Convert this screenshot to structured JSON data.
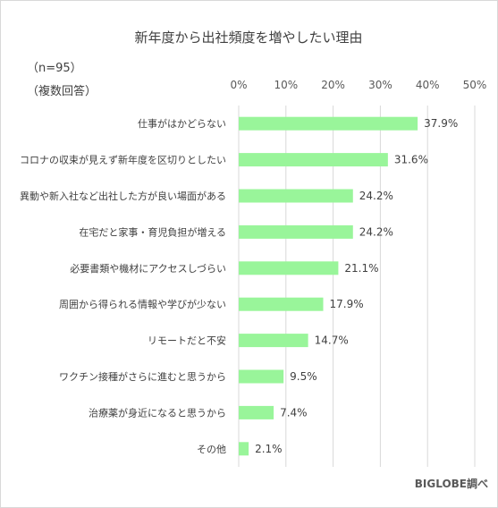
{
  "chart_data": {
    "type": "bar",
    "orientation": "horizontal",
    "title": "新年度から出社頻度を増やしたい理由",
    "notes": [
      "（n=95）",
      "（複数回答）"
    ],
    "source": "BIGLOBE調べ",
    "xlim": [
      0,
      50
    ],
    "x_ticks": [
      "0%",
      "10%",
      "20%",
      "30%",
      "40%",
      "50%"
    ],
    "grid": true,
    "bar_color": "#99f59a",
    "categories": [
      "仕事がはかどらない",
      "コロナの収束が見えず新年度を区切りとしたい",
      "異動や新入社など出社した方が良い場面がある",
      "在宅だと家事・育児負担が増える",
      "必要書類や機材にアクセスしづらい",
      "周囲から得られる情報や学びが少ない",
      "リモートだと不安",
      "ワクチン接種がさらに進むと思うから",
      "治療薬が身近になると思うから",
      "その他"
    ],
    "values": [
      37.9,
      31.6,
      24.2,
      24.2,
      21.1,
      17.9,
      14.7,
      9.5,
      7.4,
      2.1
    ],
    "value_labels": [
      "37.9%",
      "31.6%",
      "24.2%",
      "24.2%",
      "21.1%",
      "17.9%",
      "14.7%",
      "9.5%",
      "7.4%",
      "2.1%"
    ]
  }
}
